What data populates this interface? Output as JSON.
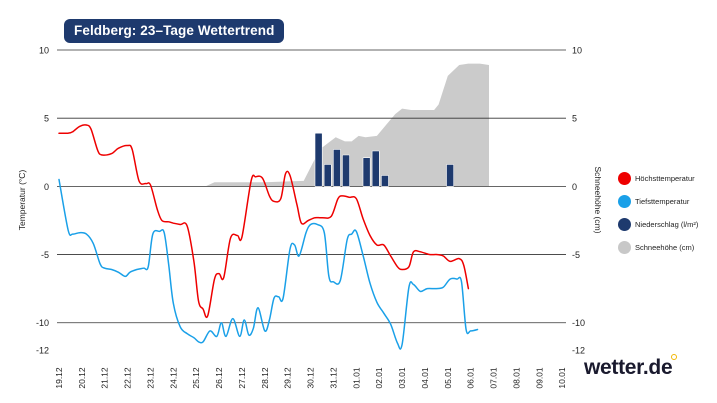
{
  "title": "Feldberg: 23–Tage Wettertrend",
  "brand": "wetter.de",
  "legend": [
    {
      "label": "Höchsttemperatur",
      "color": "#ee0000"
    },
    {
      "label": "Tiefsttemperatur",
      "color": "#1aa0e8"
    },
    {
      "label": "Niederschlag (l/m²)",
      "color": "#1e3a6e"
    },
    {
      "label": "Schneehöhe (cm)",
      "color": "#c8c8c8"
    }
  ],
  "chart_data": {
    "type": "line",
    "title": "Feldberg: 23–Tage Wettertrend",
    "ylabel_left": "Temperatur (°C)",
    "ylabel_right": "Schneehöhe (cm)",
    "ylim": [
      -12,
      10
    ],
    "yticks_left": [
      "10",
      "5",
      "0",
      "-5",
      "-10",
      "-12"
    ],
    "yticks_right": [
      "10",
      "5",
      "0",
      "-5",
      "-10",
      "-12"
    ],
    "gridlines": [
      10,
      5,
      0,
      -5,
      -10
    ],
    "categories": [
      "19.12",
      "20.12",
      "21.12",
      "22.12",
      "23.12",
      "24.12",
      "25.12",
      "26.12",
      "27.12",
      "28.12",
      "29.12",
      "30.12",
      "31.12",
      "01.01",
      "02.01",
      "03.01",
      "04.01",
      "05.01",
      "06.01",
      "07.01",
      "08.01",
      "09.01",
      "10.01"
    ],
    "series": [
      {
        "name": "Höchsttemperatur",
        "color": "#ee0000",
        "points": [
          [
            0,
            3.9
          ],
          [
            0.4,
            3.9
          ],
          [
            0.6,
            4.0
          ],
          [
            0.9,
            4.4
          ],
          [
            1.2,
            4.5
          ],
          [
            1.4,
            4.2
          ],
          [
            1.7,
            2.6
          ],
          [
            1.9,
            2.3
          ],
          [
            2.3,
            2.4
          ],
          [
            2.6,
            2.8
          ],
          [
            3.0,
            3.0
          ],
          [
            3.2,
            2.7
          ],
          [
            3.5,
            0.4
          ],
          [
            3.8,
            0.2
          ],
          [
            4.0,
            0.1
          ],
          [
            4.3,
            -1.7
          ],
          [
            4.5,
            -2.5
          ],
          [
            4.8,
            -2.6
          ],
          [
            5.0,
            -2.7
          ],
          [
            5.3,
            -2.8
          ],
          [
            5.6,
            -2.9
          ],
          [
            5.9,
            -5.5
          ],
          [
            6.1,
            -8.4
          ],
          [
            6.3,
            -9.0
          ],
          [
            6.5,
            -9.5
          ],
          [
            6.8,
            -6.8
          ],
          [
            7.0,
            -6.4
          ],
          [
            7.2,
            -6.7
          ],
          [
            7.5,
            -3.8
          ],
          [
            7.8,
            -3.6
          ],
          [
            8.0,
            -3.7
          ],
          [
            8.4,
            0.4
          ],
          [
            8.6,
            0.7
          ],
          [
            8.9,
            0.6
          ],
          [
            9.2,
            -0.7
          ],
          [
            9.4,
            -1.1
          ],
          [
            9.7,
            -0.9
          ],
          [
            9.9,
            0.9
          ],
          [
            10.1,
            0.8
          ],
          [
            10.4,
            -1.3
          ],
          [
            10.6,
            -2.7
          ],
          [
            10.9,
            -2.5
          ],
          [
            11.2,
            -2.3
          ],
          [
            11.5,
            -2.3
          ],
          [
            11.9,
            -2.2
          ],
          [
            12.2,
            -0.9
          ],
          [
            12.4,
            -0.7
          ],
          [
            12.7,
            -0.8
          ],
          [
            13.0,
            -0.9
          ],
          [
            13.3,
            -2.4
          ],
          [
            13.6,
            -3.6
          ],
          [
            13.9,
            -4.3
          ],
          [
            14.2,
            -4.3
          ],
          [
            14.5,
            -5.1
          ],
          [
            14.8,
            -5.9
          ],
          [
            15.0,
            -6.1
          ],
          [
            15.3,
            -5.9
          ],
          [
            15.5,
            -4.8
          ],
          [
            15.8,
            -4.8
          ],
          [
            16.2,
            -5.0
          ],
          [
            16.5,
            -5.0
          ],
          [
            16.8,
            -5.1
          ],
          [
            17.1,
            -5.5
          ],
          [
            17.5,
            -5.3
          ],
          [
            17.7,
            -5.8
          ],
          [
            17.9,
            -7.5
          ]
        ]
      },
      {
        "name": "Tiefsttemperatur",
        "color": "#1aa0e8",
        "points": [
          [
            0,
            0.5
          ],
          [
            0.4,
            -3.2
          ],
          [
            0.6,
            -3.5
          ],
          [
            0.9,
            -3.4
          ],
          [
            1.2,
            -3.5
          ],
          [
            1.5,
            -4.2
          ],
          [
            1.8,
            -5.7
          ],
          [
            2.0,
            -6.0
          ],
          [
            2.3,
            -6.1
          ],
          [
            2.6,
            -6.3
          ],
          [
            2.9,
            -6.6
          ],
          [
            3.1,
            -6.3
          ],
          [
            3.4,
            -6.1
          ],
          [
            3.7,
            -6.0
          ],
          [
            3.9,
            -5.9
          ],
          [
            4.1,
            -3.5
          ],
          [
            4.4,
            -3.3
          ],
          [
            4.6,
            -3.4
          ],
          [
            4.8,
            -5.8
          ],
          [
            5.0,
            -8.6
          ],
          [
            5.3,
            -10.3
          ],
          [
            5.6,
            -10.8
          ],
          [
            5.9,
            -11.1
          ],
          [
            6.1,
            -11.4
          ],
          [
            6.3,
            -11.4
          ],
          [
            6.6,
            -10.6
          ],
          [
            6.9,
            -11.0
          ],
          [
            7.1,
            -10.0
          ],
          [
            7.3,
            -11.0
          ],
          [
            7.6,
            -9.7
          ],
          [
            7.9,
            -11.0
          ],
          [
            8.1,
            -9.8
          ],
          [
            8.3,
            -10.9
          ],
          [
            8.5,
            -10.4
          ],
          [
            8.7,
            -8.9
          ],
          [
            9.0,
            -10.6
          ],
          [
            9.2,
            -9.8
          ],
          [
            9.4,
            -8.2
          ],
          [
            9.6,
            -8.1
          ],
          [
            9.8,
            -8.2
          ],
          [
            10.1,
            -4.6
          ],
          [
            10.3,
            -4.3
          ],
          [
            10.5,
            -5.1
          ],
          [
            10.8,
            -3.4
          ],
          [
            11.0,
            -2.8
          ],
          [
            11.3,
            -2.8
          ],
          [
            11.6,
            -3.4
          ],
          [
            11.8,
            -6.6
          ],
          [
            12.0,
            -7.0
          ],
          [
            12.3,
            -6.9
          ],
          [
            12.6,
            -3.9
          ],
          [
            12.8,
            -3.5
          ],
          [
            13.0,
            -3.3
          ],
          [
            13.3,
            -5.1
          ],
          [
            13.6,
            -7.1
          ],
          [
            13.9,
            -8.5
          ],
          [
            14.2,
            -9.3
          ],
          [
            14.5,
            -10.1
          ],
          [
            14.8,
            -11.5
          ],
          [
            15.0,
            -11.6
          ],
          [
            15.3,
            -7.4
          ],
          [
            15.5,
            -7.2
          ],
          [
            15.8,
            -7.7
          ],
          [
            16.1,
            -7.5
          ],
          [
            16.5,
            -7.5
          ],
          [
            16.8,
            -7.4
          ],
          [
            17.1,
            -6.8
          ],
          [
            17.4,
            -6.8
          ],
          [
            17.6,
            -7.0
          ],
          [
            17.8,
            -10.5
          ],
          [
            18.0,
            -10.6
          ],
          [
            18.3,
            -10.5
          ]
        ]
      }
    ],
    "snow": {
      "name": "Schneehöhe (cm)",
      "color": "#cbcbcb",
      "points": [
        [
          0,
          0
        ],
        [
          6.4,
          0
        ],
        [
          6.8,
          0.3
        ],
        [
          9.0,
          0.3
        ],
        [
          10.7,
          0.4
        ],
        [
          11.4,
          2.7
        ],
        [
          11.7,
          3.1
        ],
        [
          12.1,
          3.6
        ],
        [
          12.5,
          3.3
        ],
        [
          12.8,
          3.3
        ],
        [
          13.1,
          3.7
        ],
        [
          13.4,
          3.6
        ],
        [
          13.9,
          3.7
        ],
        [
          14.3,
          4.5
        ],
        [
          14.7,
          5.3
        ],
        [
          15.0,
          5.7
        ],
        [
          15.4,
          5.6
        ],
        [
          16.0,
          5.6
        ],
        [
          16.4,
          5.6
        ],
        [
          16.6,
          6.0
        ],
        [
          17.0,
          8.1
        ],
        [
          17.5,
          8.9
        ],
        [
          17.9,
          9.0
        ],
        [
          18.4,
          9.0
        ],
        [
          18.8,
          8.9
        ],
        [
          18.8,
          0
        ]
      ]
    },
    "precipitation": {
      "name": "Niederschlag (l/m²)",
      "color": "#1e3a6e",
      "bars": [
        [
          11.35,
          3.9
        ],
        [
          11.75,
          1.6
        ],
        [
          12.15,
          2.7
        ],
        [
          12.55,
          2.3
        ],
        [
          13.45,
          2.1
        ],
        [
          13.85,
          2.6
        ],
        [
          14.25,
          0.8
        ],
        [
          17.1,
          1.6
        ]
      ]
    }
  }
}
